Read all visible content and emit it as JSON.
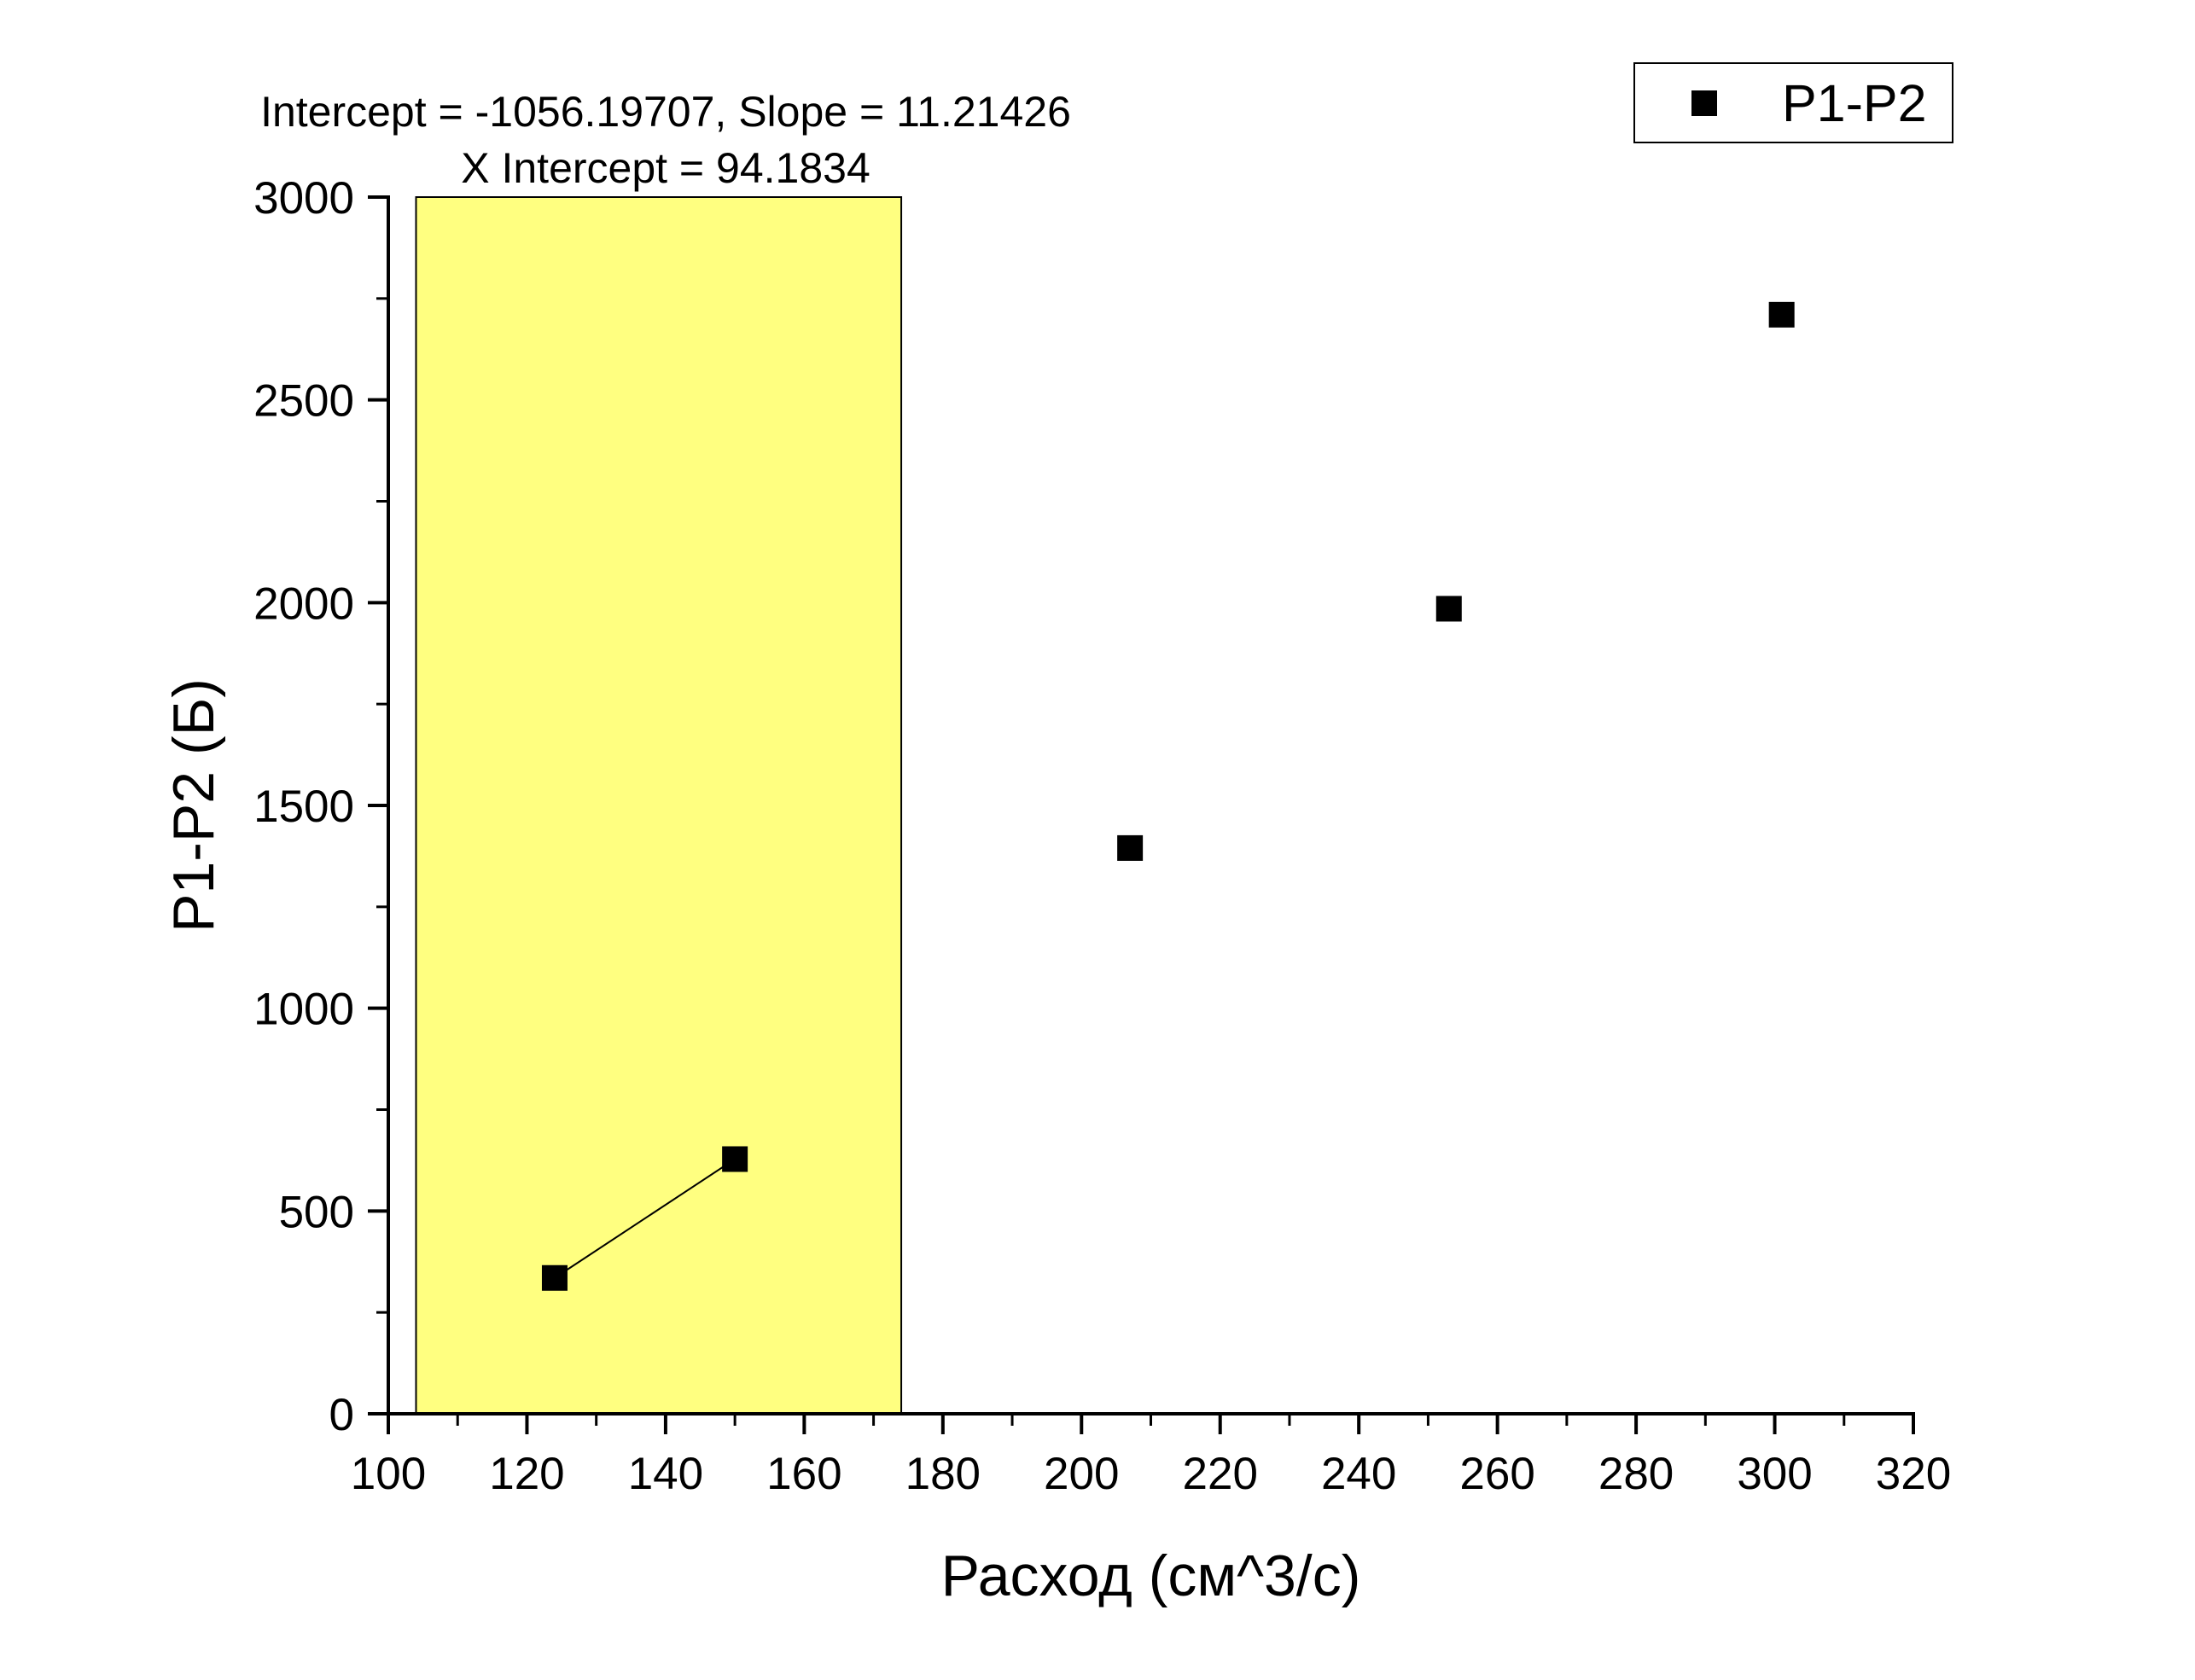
{
  "chart_data": {
    "type": "scatter",
    "xlabel": "Расход (см^3/с)",
    "ylabel": "P1-P2 (Б)",
    "xlim": [
      100,
      320
    ],
    "ylim": [
      0,
      3000
    ],
    "x_ticks": [
      "100",
      "120",
      "140",
      "160",
      "180",
      "200",
      "220",
      "240",
      "260",
      "280",
      "300",
      "320"
    ],
    "y_ticks": [
      "0",
      "500",
      "1000",
      "1500",
      "2000",
      "2500",
      "3000"
    ],
    "x_tick_values": [
      100,
      120,
      140,
      160,
      180,
      200,
      220,
      240,
      260,
      280,
      300,
      320
    ],
    "y_tick_values": [
      0,
      500,
      1000,
      1500,
      2000,
      2500,
      3000
    ],
    "x_minor_step": 10,
    "y_minor_step": 250,
    "series": [
      {
        "name": "P1-P2",
        "marker": "square",
        "color": "#000000",
        "points": [
          {
            "x": 124,
            "y": 335
          },
          {
            "x": 150,
            "y": 628
          },
          {
            "x": 207,
            "y": 1395
          },
          {
            "x": 253,
            "y": 1985
          },
          {
            "x": 301,
            "y": 2710
          }
        ]
      }
    ],
    "fit_region": {
      "x_range": [
        104,
        174
      ],
      "fill_color": "#ffff80"
    },
    "fit_line": {
      "x": [
        124,
        150
      ],
      "y": [
        335,
        628
      ]
    },
    "annotation": {
      "line1": "Intercept = -1056.19707, Slope = 11.21426",
      "line2": "X Intercept = 94.1834"
    },
    "legend": {
      "position": "top-right",
      "entries": [
        "P1-P2"
      ]
    },
    "grid": false
  }
}
